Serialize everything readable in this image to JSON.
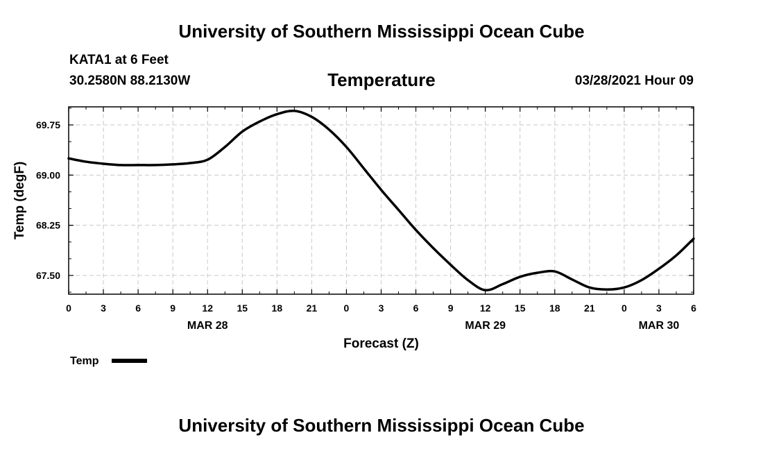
{
  "header": {
    "top_title": "University of Southern Mississippi Ocean Cube",
    "station": "KATA1 at 6 Feet",
    "coords": "30.2580N  88.2130W",
    "variable_title": "Temperature",
    "datetime": "03/28/2021 Hour 09"
  },
  "footer": {
    "bottom_title": "University of Southern Mississippi Ocean Cube"
  },
  "colors": {
    "line": "#000000",
    "grid": "#c8c8c8",
    "background": "#ffffff"
  },
  "chart_data": {
    "type": "line",
    "title": "Temperature",
    "xlabel": "Forecast (Z)",
    "ylabel": "Temp (degF)",
    "xlim": [
      0,
      54
    ],
    "ylim": [
      67.22,
      70.02
    ],
    "grid": true,
    "x_ticks": [
      0,
      3,
      6,
      9,
      12,
      15,
      18,
      21,
      24,
      27,
      30,
      33,
      36,
      39,
      42,
      45,
      48,
      51,
      54
    ],
    "x_tick_labels": [
      "0",
      "3",
      "6",
      "9",
      "12",
      "15",
      "18",
      "21",
      "0",
      "3",
      "6",
      "9",
      "12",
      "15",
      "18",
      "21",
      "0",
      "3",
      "6"
    ],
    "y_ticks": [
      67.5,
      68.25,
      69.0,
      69.75
    ],
    "y_tick_labels": [
      "67.50",
      "68.25",
      "69.00",
      "69.75"
    ],
    "date_labels": [
      {
        "x": 12,
        "label": "MAR 28"
      },
      {
        "x": 36,
        "label": "MAR 29"
      },
      {
        "x": 51,
        "label": "MAR 30"
      }
    ],
    "legend": {
      "label": "Temp",
      "position": "bottom-left"
    },
    "series": [
      {
        "name": "Temp",
        "x": [
          0,
          1.5,
          3,
          4.5,
          6,
          7.5,
          9,
          10.5,
          12,
          13.5,
          15,
          16.5,
          18,
          19.5,
          21,
          22.5,
          24,
          25.5,
          27,
          28.5,
          30,
          31.5,
          33,
          34.5,
          36,
          37.5,
          39,
          40.5,
          42,
          43.5,
          45,
          46.5,
          48,
          49.5,
          51,
          52.5,
          54
        ],
        "values": [
          69.25,
          69.2,
          69.17,
          69.15,
          69.15,
          69.15,
          69.16,
          69.18,
          69.23,
          69.42,
          69.65,
          69.8,
          69.91,
          69.96,
          69.87,
          69.68,
          69.42,
          69.1,
          68.78,
          68.48,
          68.18,
          67.91,
          67.66,
          67.43,
          67.28,
          67.37,
          67.48,
          67.54,
          67.56,
          67.44,
          67.32,
          67.29,
          67.32,
          67.43,
          67.6,
          67.8,
          68.05
        ]
      }
    ]
  }
}
